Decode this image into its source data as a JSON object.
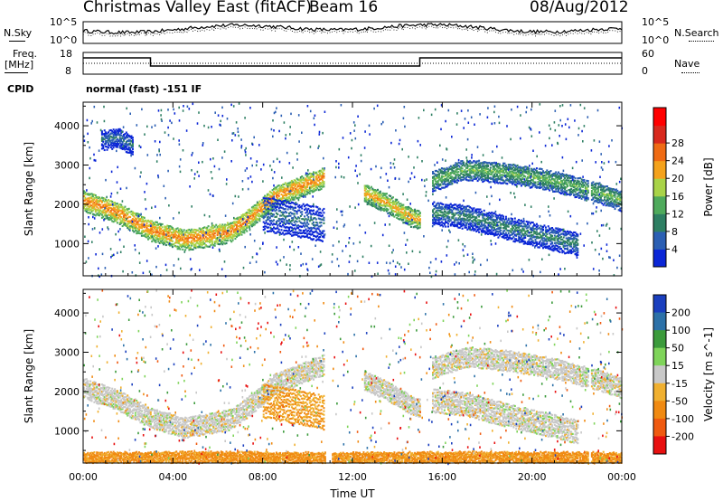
{
  "header": {
    "station": "Christmas Valley East (fitACF)",
    "beam": "Beam 16",
    "date": "08/Aug/2012"
  },
  "nsky_panel": {
    "left_label": "N.Sky",
    "right_label": "N.Search",
    "left_ticks": [
      "10^5",
      "10^0"
    ],
    "right_ticks": [
      "10^5",
      "10^0"
    ]
  },
  "freq_panel": {
    "left_label_1": "Freq.",
    "left_label_2": "[MHz]",
    "right_label": "Nave",
    "left_ticks": [
      "18",
      "8"
    ],
    "right_ticks": [
      "60",
      "0"
    ]
  },
  "cpid": {
    "label": "CPID",
    "mode_text": "normal (fast)  -151 IF"
  },
  "chart_data": [
    {
      "type": "heatmap",
      "name": "Power",
      "xlabel": "",
      "ylabel": "Slant Range [km]",
      "x_ticks": [
        "00:00",
        "04:00",
        "08:00",
        "12:00",
        "16:00",
        "20:00",
        "00:00"
      ],
      "y_ticks": [
        1000,
        2000,
        3000,
        4000
      ],
      "y_range": [
        180,
        4600
      ],
      "colorbar": {
        "label": "Power [dB]",
        "ticks": [
          4,
          8,
          12,
          16,
          20,
          24,
          28
        ],
        "colors": [
          "#0b26d6",
          "#2b5fb3",
          "#2e7f63",
          "#4faa5c",
          "#a9d348",
          "#f4a21c",
          "#ef6b14",
          "#d8291d",
          "#ff0000"
        ]
      },
      "bands": [
        {
          "t": [
            0,
            1.5,
            3,
            4.5,
            6.5,
            7.5,
            8.5,
            10.7
          ],
          "r": [
            2100,
            1800,
            1350,
            1100,
            1300,
            1700,
            2200,
            2700
          ],
          "w": 260,
          "p": 22
        },
        {
          "t": [
            12.5,
            13.5,
            14.5,
            15.0
          ],
          "r": [
            2300,
            2050,
            1700,
            1600
          ],
          "w": 240,
          "p": 20
        },
        {
          "t": [
            15.5,
            17,
            19,
            21,
            23,
            24
          ],
          "r": [
            2600,
            2900,
            2800,
            2600,
            2300,
            2100
          ],
          "w": 260,
          "p": 14
        },
        {
          "t": [
            15.5,
            17,
            19,
            22
          ],
          "r": [
            1800,
            1700,
            1400,
            1000
          ],
          "w": 300,
          "p": 10
        },
        {
          "t": [
            8,
            9,
            10,
            10.7
          ],
          "r": [
            1800,
            1700,
            1600,
            1500
          ],
          "w": 450,
          "p": 8
        },
        {
          "t": [
            0.8,
            1.6,
            2.2
          ],
          "r": [
            3650,
            3700,
            3500
          ],
          "w": 250,
          "p": 8
        }
      ],
      "gaps": [
        [
          10.75,
          11.05
        ],
        [
          22.5,
          22.6
        ]
      ]
    },
    {
      "type": "heatmap",
      "name": "Velocity",
      "xlabel": "Time UT",
      "ylabel": "Slant Range [km]",
      "x_ticks": [
        "00:00",
        "04:00",
        "08:00",
        "12:00",
        "16:00",
        "20:00",
        "00:00"
      ],
      "y_ticks": [
        1000,
        2000,
        3000,
        4000
      ],
      "y_range": [
        180,
        4600
      ],
      "colorbar": {
        "label": "Velocity [m s^-1]",
        "ticks": [
          200,
          100,
          50,
          15,
          -15,
          -50,
          -100,
          -200
        ],
        "colors": [
          "#1a3fbe",
          "#2c71a8",
          "#3c9b3c",
          "#7fd45a",
          "#c8c8c8",
          "#f0b030",
          "#f08a12",
          "#ef5a10",
          "#e81010"
        ]
      },
      "bands": [
        {
          "t": [
            0,
            1.5,
            3,
            4.5,
            6.5,
            7.5,
            8.5,
            10.7
          ],
          "r": [
            2100,
            1800,
            1350,
            1100,
            1300,
            1700,
            2200,
            2700
          ],
          "w": 260,
          "v": 0
        },
        {
          "t": [
            12.5,
            13.5,
            14.5,
            15.0
          ],
          "r": [
            2300,
            2050,
            1700,
            1600
          ],
          "w": 240,
          "v": 0
        },
        {
          "t": [
            15.5,
            17,
            19,
            21,
            23,
            24
          ],
          "r": [
            2600,
            2900,
            2800,
            2600,
            2300,
            2100
          ],
          "w": 260,
          "v": 0
        },
        {
          "t": [
            15.5,
            17,
            19,
            22
          ],
          "r": [
            1800,
            1700,
            1400,
            1000
          ],
          "w": 300,
          "v": 0
        },
        {
          "t": [
            8,
            9,
            10,
            10.7
          ],
          "r": [
            1800,
            1700,
            1600,
            1500
          ],
          "w": 450,
          "v": -50
        },
        {
          "t": [
            0,
            5,
            10.7,
            12,
            18,
            24
          ],
          "r": [
            300,
            320,
            300,
            300,
            320,
            300
          ],
          "w": 160,
          "v": -60
        }
      ],
      "gaps": [
        [
          10.75,
          11.05
        ],
        [
          22.5,
          22.6
        ]
      ]
    }
  ]
}
